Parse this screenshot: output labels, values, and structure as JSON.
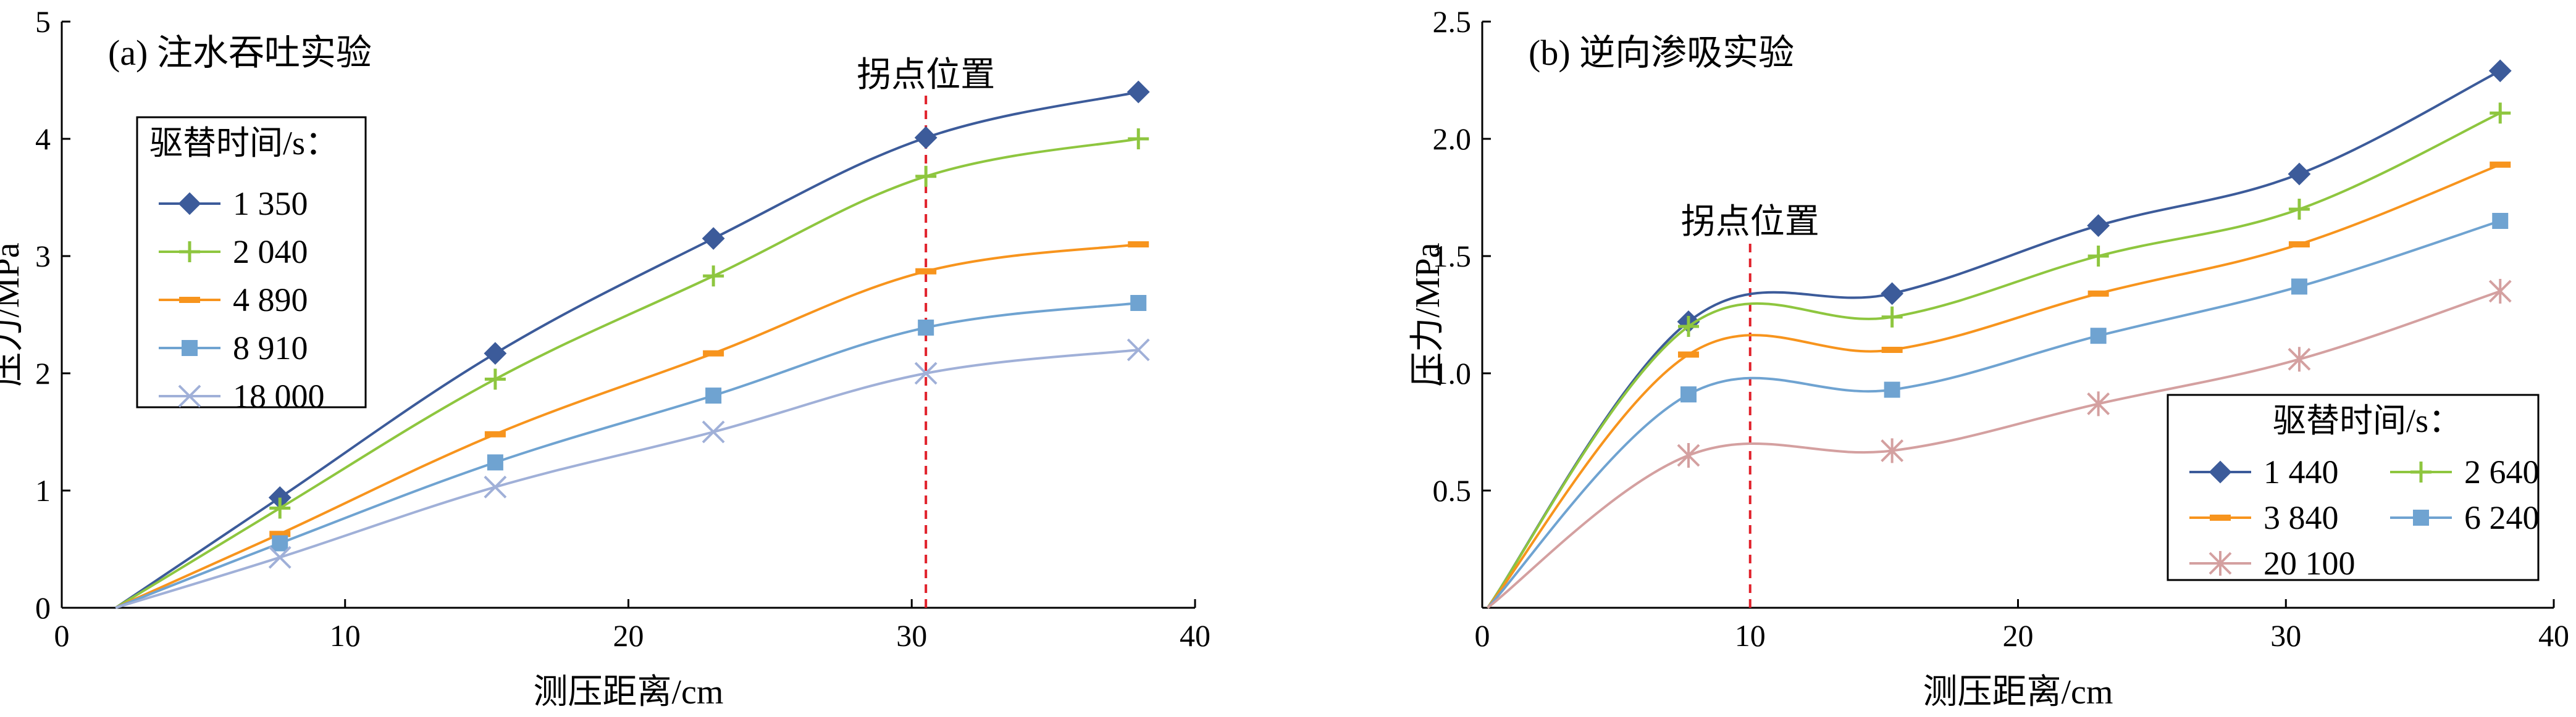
{
  "chart_data": [
    {
      "type": "line",
      "title": "(a) 注水吞吐实验",
      "xlabel": "测压距离/cm",
      "ylabel": "压力/MPa",
      "xlim": [
        0,
        40
      ],
      "ylim": [
        0,
        5
      ],
      "xticks": [
        0,
        10,
        20,
        30,
        40
      ],
      "yticks": [
        0,
        1,
        2,
        3,
        4,
        5
      ],
      "ytick_labels": [
        "0",
        "1",
        "2",
        "3",
        "4",
        "5"
      ],
      "grid": false,
      "legend_title": "驱替时间/s：",
      "legend_position": "upper-left",
      "annotation": {
        "text": "拐点位置",
        "x": 30.5
      },
      "origin": [
        1.9,
        0
      ],
      "series": [
        {
          "name": "1 350",
          "color": "#3c5b9a",
          "marker": "diamond",
          "x": [
            7.7,
            15.3,
            23.0,
            30.5,
            38.0
          ],
          "y": [
            0.94,
            2.17,
            3.15,
            4.01,
            4.4
          ]
        },
        {
          "name": "2 040",
          "color": "#8ec63f",
          "marker": "plus",
          "x": [
            7.7,
            15.3,
            23.0,
            30.5,
            38.0
          ],
          "y": [
            0.85,
            1.95,
            2.83,
            3.68,
            4.0
          ]
        },
        {
          "name": "4 890",
          "color": "#f7941d",
          "marker": "dash",
          "x": [
            7.7,
            15.3,
            23.0,
            30.5,
            38.0
          ],
          "y": [
            0.63,
            1.48,
            2.17,
            2.87,
            3.1
          ]
        },
        {
          "name": "8 910",
          "color": "#6fa3d1",
          "marker": "square",
          "x": [
            7.7,
            15.3,
            23.0,
            30.5,
            38.0
          ],
          "y": [
            0.55,
            1.24,
            1.81,
            2.39,
            2.6
          ]
        },
        {
          "name": "18 000",
          "color": "#a0b0d8",
          "marker": "x",
          "x": [
            7.7,
            15.3,
            23.0,
            30.5,
            38.0
          ],
          "y": [
            0.43,
            1.03,
            1.5,
            2.0,
            2.2
          ]
        }
      ]
    },
    {
      "type": "line",
      "title": "(b) 逆向渗吸实验",
      "xlabel": "测压距离/cm",
      "ylabel": "压力/MPa",
      "xlim": [
        0,
        40
      ],
      "ylim": [
        0,
        2.5
      ],
      "xticks": [
        0,
        10,
        20,
        30,
        40
      ],
      "yticks": [
        0.5,
        1.0,
        1.5,
        2.0,
        2.5
      ],
      "ytick_labels": [
        "0.5",
        "1.0",
        "1.5",
        "2.0",
        "2.5"
      ],
      "grid": false,
      "legend_title": "驱替时间/s：",
      "legend_position": "lower-right",
      "annotation": {
        "text": "拐点位置",
        "x": 10
      },
      "origin": [
        0.2,
        0
      ],
      "series": [
        {
          "name": "1 440",
          "color": "#3c5b9a",
          "marker": "diamond",
          "x": [
            7.7,
            15.3,
            23.0,
            30.5,
            38.0
          ],
          "y": [
            1.22,
            1.34,
            1.63,
            1.85,
            2.29
          ]
        },
        {
          "name": "2 640",
          "color": "#8ec63f",
          "marker": "plus",
          "x": [
            7.7,
            15.3,
            23.0,
            30.5,
            38.0
          ],
          "y": [
            1.2,
            1.24,
            1.5,
            1.7,
            2.11
          ]
        },
        {
          "name": "3 840",
          "color": "#f7941d",
          "marker": "dash",
          "x": [
            7.7,
            15.3,
            23.0,
            30.5,
            38.0
          ],
          "y": [
            1.08,
            1.1,
            1.34,
            1.55,
            1.89
          ]
        },
        {
          "name": "6 240",
          "color": "#6fa3d1",
          "marker": "square",
          "x": [
            7.7,
            15.3,
            23.0,
            30.5,
            38.0
          ],
          "y": [
            0.91,
            0.93,
            1.16,
            1.37,
            1.65
          ]
        },
        {
          "name": "20 100",
          "color": "#d4a0a0",
          "marker": "asterisk",
          "x": [
            7.7,
            15.3,
            23.0,
            30.5,
            38.0
          ],
          "y": [
            0.65,
            0.67,
            0.87,
            1.06,
            1.35
          ]
        }
      ]
    }
  ]
}
